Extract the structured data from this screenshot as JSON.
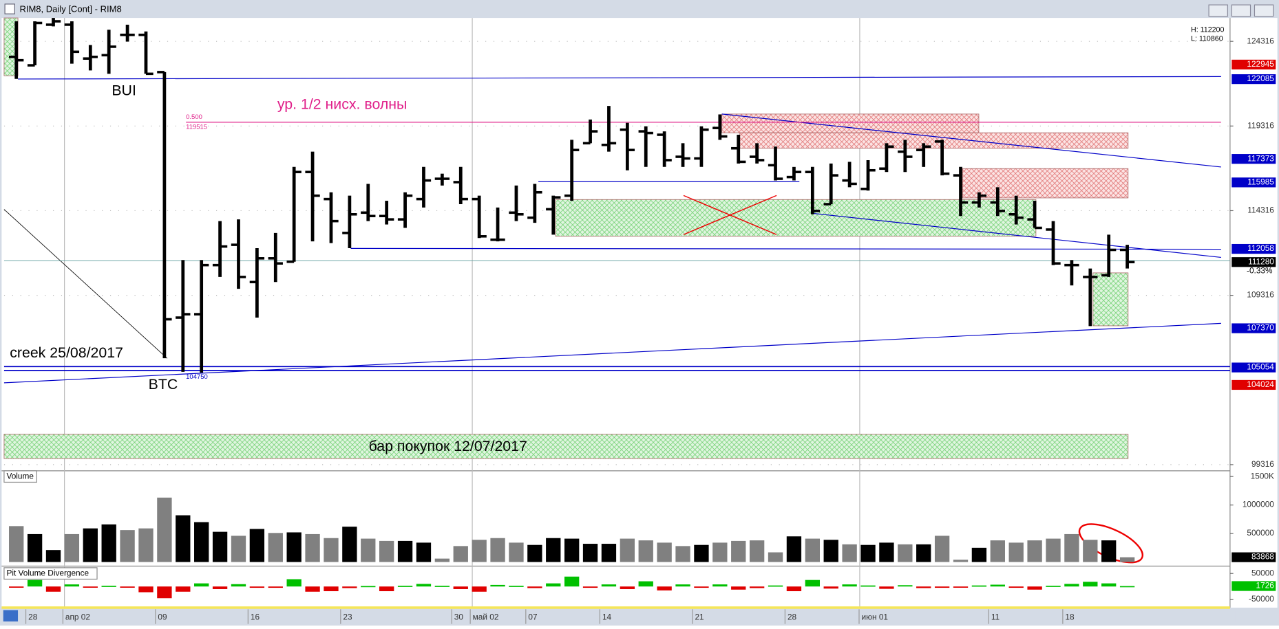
{
  "window": {
    "title": "RIM8, Daily [Cont] - RIM8"
  },
  "price_stats": {
    "high": "H: 112200",
    "low": "L: 110860",
    "change": "-0.33%"
  },
  "annotations": {
    "bui": "BUI",
    "level_half": "ур. 1/2 нисх. волны",
    "fib_ratio": "0.500",
    "fib_price": "119515",
    "creek": "creek 25/08/2017",
    "btc": "BTC",
    "btc_price": "104750",
    "buy_bar": "бар покупок 12/07/2017"
  },
  "price_levels": [
    {
      "value": 122945,
      "color": "#e00000"
    },
    {
      "value": 122085,
      "color": "#0000c8"
    },
    {
      "value": 117373,
      "color": "#0000c8"
    },
    {
      "value": 115985,
      "color": "#0000c8"
    },
    {
      "value": 112058,
      "color": "#0000c8"
    },
    {
      "value": 111280,
      "color": "#000000"
    },
    {
      "value": 107370,
      "color": "#0000c8"
    },
    {
      "value": 105054,
      "color": "#0000c8"
    },
    {
      "value": 104024,
      "color": "#e00000"
    }
  ],
  "chart_data": [
    {
      "type": "ohlc",
      "color": "#000000",
      "categories": [
        null,
        "28",
        null,
        "апр 02",
        null,
        null,
        null,
        null,
        "09",
        null,
        null,
        null,
        null,
        "16",
        null,
        null,
        null,
        null,
        "23",
        null,
        null,
        null,
        null,
        null,
        "30",
        "май 02",
        null,
        null,
        "07",
        null,
        null,
        null,
        "14",
        null,
        null,
        null,
        null,
        "21",
        null,
        null,
        null,
        null,
        "28",
        null,
        null,
        null,
        "июн 01",
        null,
        null,
        null,
        null,
        null,
        null,
        "11",
        null,
        null,
        null,
        "18",
        null,
        null,
        null
      ],
      "open": [
        123400,
        122900,
        125300,
        125300,
        123300,
        123500,
        124700,
        124700,
        122500,
        108000,
        108200,
        111100,
        112300,
        110100,
        111500,
        111300,
        116600,
        115000,
        113000,
        114200,
        114000,
        113800,
        115000,
        116200,
        116000,
        115000,
        112600,
        114200,
        113900,
        114400,
        115200,
        118300,
        118200,
        119100,
        119000,
        118800,
        117500,
        117400,
        119200,
        118000,
        117500,
        117000,
        116300,
        116600,
        114700,
        116100,
        115600,
        116800,
        117800,
        117900,
        118400,
        116400,
        114800,
        114800,
        114100,
        113800,
        113200,
        111100,
        110400,
        110500,
        112000
      ],
      "high": [
        125500,
        125500,
        125700,
        125500,
        124100,
        125000,
        125300,
        124900,
        122500,
        111400,
        111400,
        113700,
        113800,
        112100,
        113000,
        116900,
        117800,
        115400,
        115200,
        115900,
        114900,
        115400,
        116900,
        116500,
        116900,
        115200,
        114500,
        115800,
        115900,
        115200,
        118500,
        119700,
        120500,
        119500,
        119300,
        119000,
        118300,
        119300,
        120000,
        118800,
        118300,
        118100,
        116900,
        116900,
        117100,
        117200,
        117300,
        118300,
        118500,
        118300,
        118500,
        116900,
        115400,
        115700,
        115200,
        114900,
        113700,
        111400,
        110900,
        112900,
        112300
      ],
      "low": [
        122100,
        122900,
        125200,
        123000,
        122600,
        122400,
        124300,
        122400,
        105600,
        104800,
        104750,
        110400,
        109700,
        108000,
        110100,
        111300,
        112500,
        112400,
        112100,
        113700,
        113500,
        113300,
        114500,
        115800,
        114700,
        112700,
        112500,
        113700,
        113600,
        112900,
        114900,
        118300,
        117800,
        116700,
        116900,
        116900,
        116900,
        116900,
        118500,
        117100,
        117100,
        116100,
        116100,
        114100,
        114700,
        115700,
        115500,
        116600,
        116600,
        116900,
        116400,
        114000,
        114500,
        114000,
        113500,
        113300,
        111100,
        109900,
        107500,
        110400,
        110900
      ],
      "close": [
        123200,
        125400,
        125500,
        123700,
        123400,
        124000,
        124700,
        122400,
        107900,
        108200,
        111100,
        112200,
        110400,
        111500,
        111200,
        116600,
        115200,
        113700,
        114100,
        114000,
        113800,
        115200,
        116100,
        116200,
        115000,
        112800,
        112600,
        114100,
        115400,
        115100,
        117900,
        119000,
        118300,
        117900,
        118900,
        117300,
        117400,
        119100,
        118700,
        117200,
        117300,
        116200,
        116600,
        114300,
        116400,
        115900,
        116700,
        118100,
        117500,
        118100,
        116500,
        114800,
        115200,
        114300,
        113900,
        113300,
        111200,
        111100,
        110400,
        112000,
        111280
      ],
      "ylim": [
        99000,
        125700
      ],
      "yticks": [
        99316,
        109316,
        114316,
        119316,
        124316
      ],
      "grid": true
    },
    {
      "type": "bar",
      "title": "Volume",
      "color": "#000000",
      "color_down": "#808080",
      "values": [
        630000,
        490000,
        210000,
        490000,
        590000,
        660000,
        560000,
        590000,
        1130000,
        820000,
        700000,
        530000,
        460000,
        580000,
        510000,
        520000,
        490000,
        420000,
        620000,
        410000,
        370000,
        370000,
        340000,
        60000,
        280000,
        390000,
        420000,
        340000,
        300000,
        420000,
        410000,
        320000,
        320000,
        410000,
        380000,
        340000,
        280000,
        300000,
        340000,
        370000,
        380000,
        170000,
        450000,
        410000,
        390000,
        310000,
        300000,
        340000,
        310000,
        310000,
        460000,
        40000,
        250000,
        380000,
        340000,
        380000,
        410000,
        490000,
        390000,
        380000,
        83868
      ],
      "ylim": [
        0,
        1600000
      ],
      "yticks": [
        {
          "value": 1500000,
          "label": "1500K"
        },
        1000000,
        500000
      ]
    },
    {
      "type": "diverging-bar",
      "title": "Pit Volume Divergence",
      "color": "#00c000",
      "color_down": "#e00000",
      "values": [
        -3000,
        25000,
        -20000,
        8000,
        -2000,
        3000,
        -3000,
        -22000,
        -45000,
        -20000,
        12000,
        -10000,
        9000,
        -5000,
        -5000,
        28000,
        -20000,
        -18000,
        -6000,
        2000,
        -18000,
        3000,
        10000,
        3000,
        -10000,
        -20000,
        6000,
        3000,
        -6000,
        12000,
        38000,
        -5000,
        8000,
        -10000,
        20000,
        -15000,
        8000,
        -5000,
        8000,
        -12000,
        -6000,
        4000,
        -18000,
        25000,
        -8000,
        8000,
        4000,
        -9000,
        5000,
        -6000,
        -5000,
        -3000,
        4000,
        7000,
        -5000,
        -12000,
        3000,
        10000,
        18000,
        12000,
        1726
      ],
      "ylim": [
        -78000,
        72000
      ],
      "yticks": [
        50000,
        -50000
      ]
    }
  ]
}
